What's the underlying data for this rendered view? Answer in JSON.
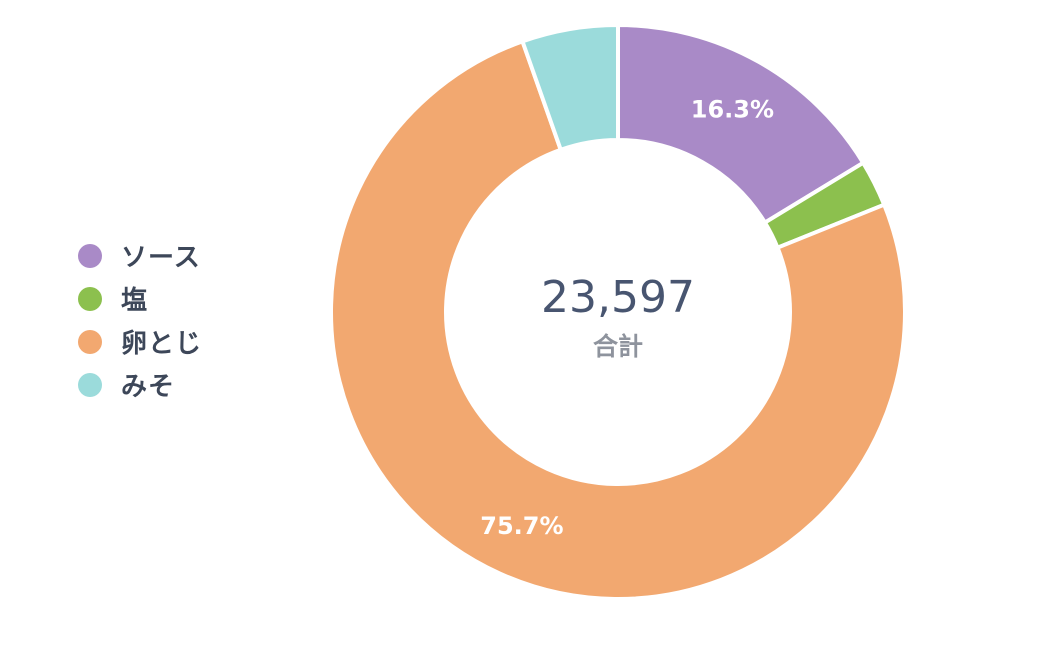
{
  "chart_data": {
    "type": "pie",
    "categories": [
      "ソース",
      "塩",
      "卵とじ",
      "みそ"
    ],
    "values": [
      16.3,
      2.6,
      75.7,
      5.4
    ],
    "data_labels": [
      "16.3%",
      "",
      "75.7%",
      ""
    ],
    "colors": [
      "#a98ac7",
      "#8cc04e",
      "#f2a870",
      "#9bdbdb"
    ],
    "center": {
      "total": "23,597",
      "caption": "合計"
    },
    "legend_position": "left"
  }
}
